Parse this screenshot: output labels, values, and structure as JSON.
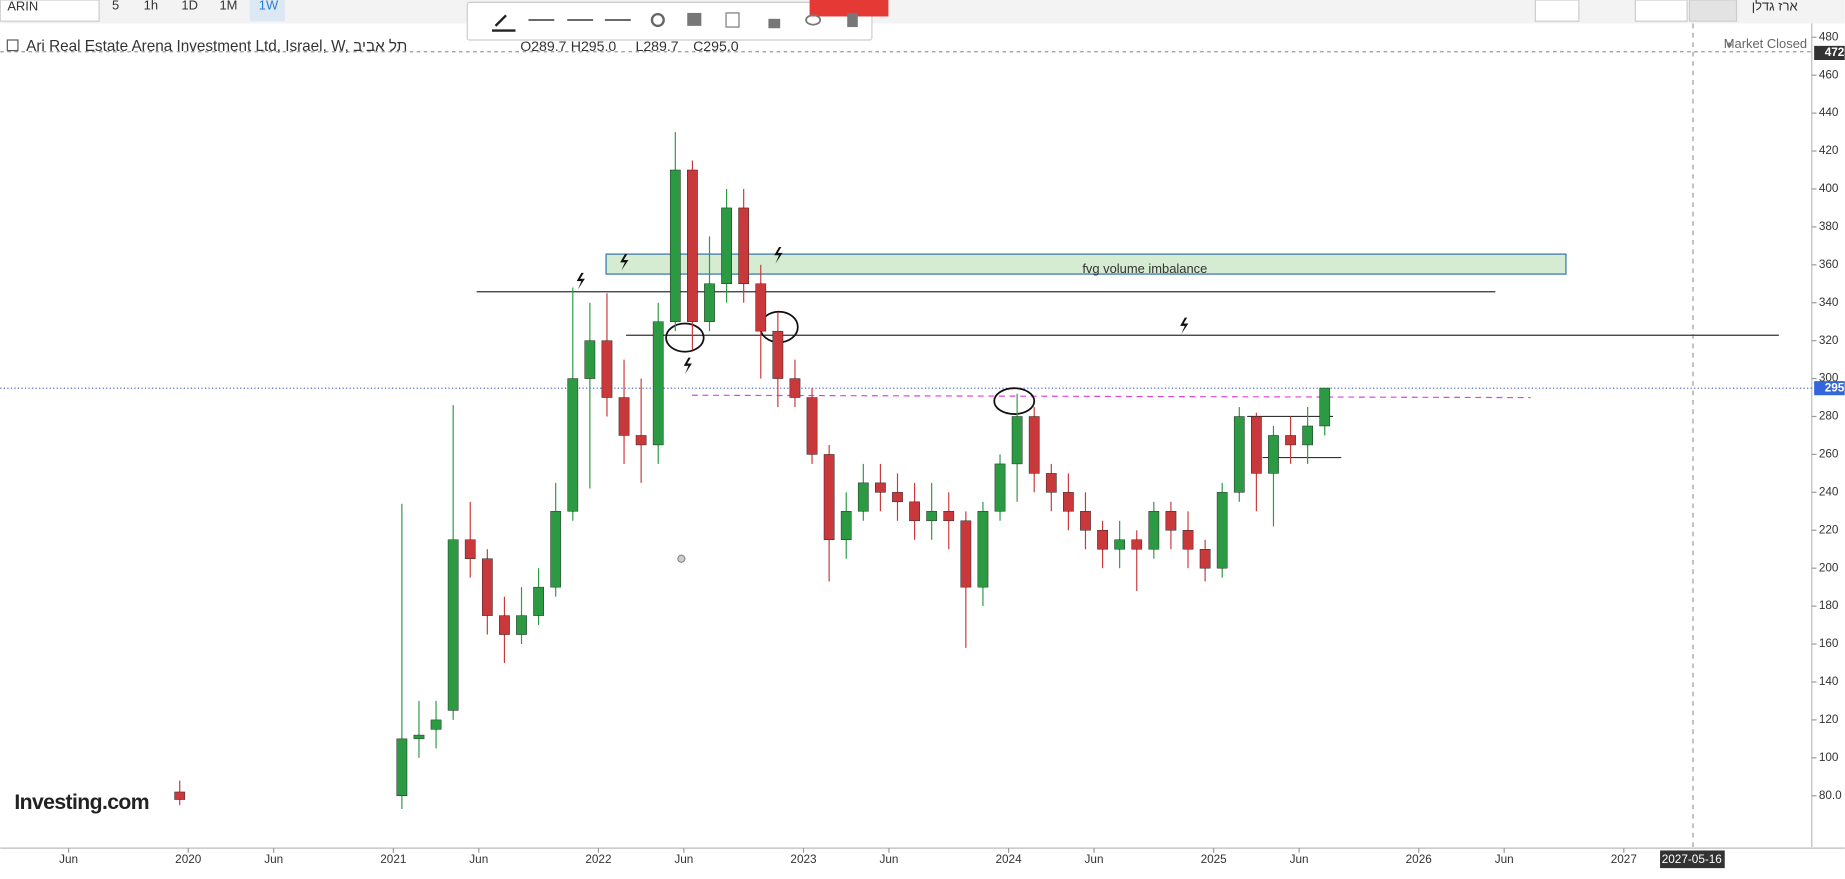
{
  "toolbar": {
    "symbol": "ARIN",
    "intervals": [
      "5",
      "1h",
      "1D",
      "1M",
      "1W"
    ],
    "user": "ארז גדלן"
  },
  "legend": {
    "name": "Ari Real Estate Arena Investment Ltd, Israel, W, תל אביב",
    "open": "O289.7",
    "high": "H295.0",
    "low": "L289.7",
    "close": "C295.0",
    "status": "Market Closed"
  },
  "annotations": {
    "zone": "fvg volume imbalance",
    "price_high": "472",
    "price_last": "295",
    "crosshair_date": "2027-05-16"
  },
  "branding": "Investing.com",
  "chart_data": {
    "type": "candlestick",
    "up_color": "#2b9a43",
    "down_color": "#c9383a",
    "x": [
      "2019-12",
      "2021-01",
      "2021-02",
      "2021-03",
      "2021-04",
      "2021-05",
      "2021-06",
      "2021-07",
      "2021-08",
      "2021-09",
      "2021-10",
      "2021-11",
      "2021-12",
      "2022-01",
      "2022-02",
      "2022-03",
      "2022-04",
      "2022-05",
      "2022-06",
      "2022-07",
      "2022-08",
      "2022-09",
      "2022-10",
      "2022-11",
      "2022-12",
      "2023-01",
      "2023-02",
      "2023-03",
      "2023-04",
      "2023-05",
      "2023-06",
      "2023-07",
      "2023-08",
      "2023-09",
      "2023-10",
      "2023-11",
      "2023-12",
      "2024-01",
      "2024-02",
      "2024-03",
      "2024-04",
      "2024-05",
      "2024-06",
      "2024-07",
      "2024-08",
      "2024-09",
      "2024-10",
      "2024-11",
      "2024-12",
      "2025-01",
      "2025-02",
      "2025-03",
      "2025-04",
      "2025-05",
      "2025-06",
      "2025-07"
    ],
    "open": [
      82,
      80,
      110,
      115,
      125,
      215,
      205,
      175,
      165,
      175,
      190,
      230,
      300,
      320,
      290,
      270,
      265,
      330,
      410,
      330,
      350,
      390,
      350,
      325,
      300,
      290,
      260,
      215,
      230,
      245,
      240,
      235,
      225,
      230,
      225,
      190,
      230,
      255,
      280,
      250,
      240,
      230,
      220,
      210,
      215,
      210,
      230,
      220,
      210,
      200,
      240,
      280,
      250,
      270,
      265,
      275
    ],
    "high": [
      88,
      234,
      130,
      130,
      286,
      235,
      210,
      185,
      190,
      200,
      245,
      348,
      340,
      345,
      310,
      300,
      340,
      430,
      415,
      375,
      400,
      400,
      360,
      335,
      310,
      295,
      265,
      240,
      255,
      255,
      250,
      245,
      245,
      240,
      230,
      235,
      260,
      292,
      285,
      255,
      250,
      240,
      225,
      225,
      220,
      235,
      235,
      230,
      215,
      245,
      285,
      282,
      275,
      280,
      285,
      295
    ],
    "low": [
      75,
      73,
      100,
      105,
      120,
      195,
      165,
      150,
      160,
      170,
      185,
      225,
      242,
      280,
      255,
      245,
      255,
      325,
      315,
      325,
      340,
      340,
      300,
      285,
      285,
      255,
      193,
      205,
      225,
      230,
      225,
      215,
      215,
      210,
      158,
      180,
      225,
      235,
      240,
      230,
      220,
      210,
      200,
      200,
      188,
      205,
      210,
      200,
      193,
      195,
      235,
      230,
      222,
      255,
      255,
      270
    ],
    "close": [
      78,
      110,
      112,
      120,
      215,
      205,
      175,
      165,
      175,
      190,
      230,
      300,
      320,
      290,
      270,
      265,
      330,
      410,
      330,
      350,
      390,
      350,
      325,
      300,
      290,
      260,
      215,
      230,
      245,
      240,
      235,
      225,
      230,
      225,
      190,
      230,
      255,
      280,
      250,
      240,
      230,
      220,
      210,
      215,
      210,
      230,
      220,
      210,
      200,
      240,
      280,
      250,
      270,
      265,
      275,
      295
    ],
    "xlim": [
      "2019-02",
      "2027-12"
    ],
    "xticks": [
      {
        "value": "2019-06",
        "label": "Jun"
      },
      {
        "value": "2020-01",
        "label": "2020"
      },
      {
        "value": "2020-06",
        "label": "Jun"
      },
      {
        "value": "2021-01",
        "label": "2021"
      },
      {
        "value": "2021-06",
        "label": "Jun"
      },
      {
        "value": "2022-01",
        "label": "2022"
      },
      {
        "value": "2022-06",
        "label": "Jun"
      },
      {
        "value": "2023-01",
        "label": "2023"
      },
      {
        "value": "2023-06",
        "label": "Jun"
      },
      {
        "value": "2024-01",
        "label": "2024"
      },
      {
        "value": "2024-06",
        "label": "Jun"
      },
      {
        "value": "2025-01",
        "label": "2025"
      },
      {
        "value": "2025-06",
        "label": "Jun"
      },
      {
        "value": "2026-01",
        "label": "2026"
      },
      {
        "value": "2026-06",
        "label": "Jun"
      },
      {
        "value": "2027-01",
        "label": "2027"
      }
    ],
    "ylim": [
      53,
      486
    ],
    "yticks": [
      {
        "value": 80,
        "label": "80.0"
      },
      100,
      120,
      140,
      160,
      180,
      200,
      220,
      240,
      260,
      280,
      300,
      320,
      340,
      360,
      380,
      400,
      420,
      440,
      460,
      480
    ]
  }
}
